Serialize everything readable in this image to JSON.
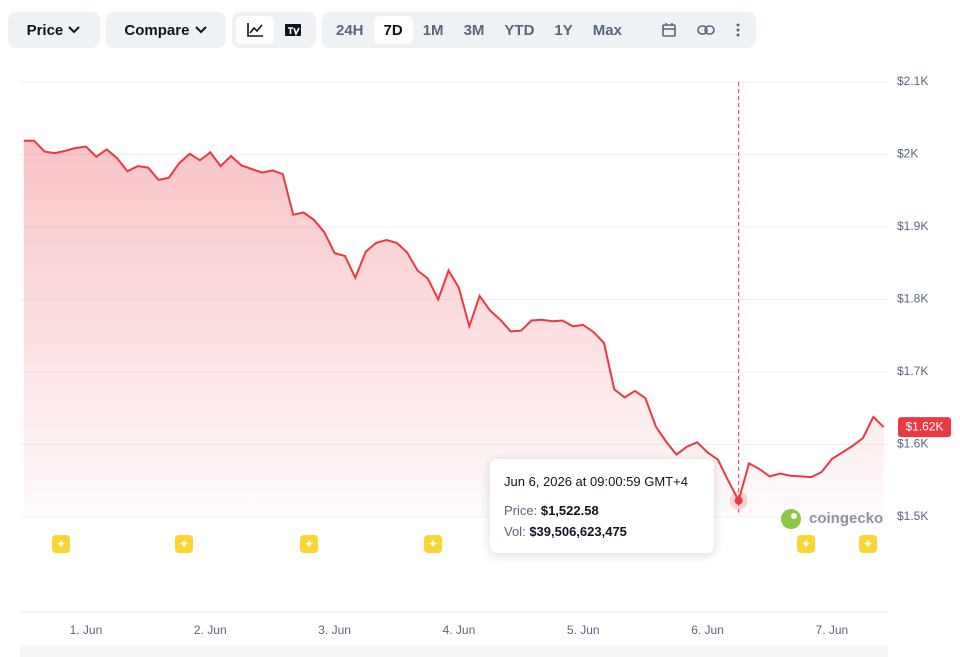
{
  "toolbar": {
    "price": "Price",
    "compare": "Compare",
    "ranges": [
      "24H",
      "7D",
      "1M",
      "3M",
      "YTD",
      "1Y",
      "Max"
    ],
    "active": "7D"
  },
  "tooltip": {
    "date": "Jun 6, 2026 at 09:00:59 GMT+4",
    "price_label": "Price:",
    "vol_label": "Vol:",
    "vol": "$39,506,623,475"
  },
  "watermark": "coingecko",
  "chart_data": {
    "type": "area",
    "categories": [
      null,
      null,
      null,
      null,
      null,
      null,
      "1. Jun",
      null,
      null,
      null,
      null,
      null,
      null,
      null,
      null,
      null,
      null,
      null,
      "2. Jun",
      null,
      null,
      null,
      null,
      null,
      null,
      null,
      null,
      null,
      null,
      null,
      "3. Jun",
      null,
      null,
      null,
      null,
      null,
      null,
      null,
      null,
      null,
      null,
      null,
      "4. Jun",
      null,
      null,
      null,
      null,
      null,
      null,
      null,
      null,
      null,
      null,
      null,
      "5. Jun",
      null,
      null,
      null,
      null,
      null,
      null,
      null,
      null,
      null,
      null,
      null,
      "6. Jun",
      null,
      null,
      null,
      null,
      null,
      null,
      null,
      null,
      null,
      null,
      null,
      "7. Jun",
      null,
      null,
      null,
      null,
      null
    ],
    "values": [
      2019,
      2019,
      2004,
      2002,
      2005,
      2009,
      2011,
      1997,
      2007,
      1995,
      1977,
      1984,
      1982,
      1965,
      1968,
      1988,
      2001,
      1992,
      2003,
      1984,
      1998,
      1985,
      1980,
      1975,
      1978,
      1973,
      1917,
      1920,
      1910,
      1893,
      1864,
      1860,
      1830,
      1866,
      1878,
      1882,
      1878,
      1865,
      1840,
      1829,
      1800,
      1840,
      1816,
      1763,
      1805,
      1785,
      1772,
      1756,
      1757,
      1771,
      1772,
      1770,
      1771,
      1763,
      1765,
      1755,
      1740,
      1676,
      1665,
      1674,
      1664,
      1625,
      1604,
      1586,
      1597,
      1603,
      1589,
      1579,
      1550,
      1522.58,
      1574,
      1566,
      1556,
      1560,
      1557,
      1556,
      1555,
      1562,
      1580,
      1589,
      1598,
      1609,
      1638,
      1624
    ],
    "value_labels": [
      null,
      null,
      null,
      null,
      null,
      null,
      null,
      null,
      null,
      null,
      null,
      null,
      null,
      null,
      null,
      null,
      null,
      null,
      null,
      null,
      null,
      null,
      null,
      null,
      null,
      null,
      null,
      null,
      null,
      null,
      null,
      null,
      null,
      null,
      null,
      null,
      null,
      null,
      null,
      null,
      null,
      null,
      null,
      null,
      null,
      null,
      null,
      null,
      null,
      null,
      null,
      null,
      null,
      null,
      null,
      null,
      null,
      null,
      null,
      null,
      null,
      null,
      null,
      null,
      null,
      null,
      null,
      null,
      null,
      "$1,522.58",
      null,
      null,
      null,
      null,
      null,
      null,
      null,
      null,
      null,
      null,
      null,
      null,
      null,
      "$1.62K"
    ],
    "color": "#ea3943",
    "ylim": [
      1500,
      2100
    ],
    "yticks": [
      {
        "value": 1500,
        "label": "$1.5K"
      },
      {
        "value": 1600,
        "label": "$1.6K"
      },
      {
        "value": 1700,
        "label": "$1.7K"
      },
      {
        "value": 1800,
        "label": "$1.8K"
      },
      {
        "value": 1900,
        "label": "$1.9K"
      },
      {
        "value": 2000,
        "label": "$2K"
      },
      {
        "value": 2100,
        "label": "$2.1K"
      }
    ],
    "grid": true
  }
}
